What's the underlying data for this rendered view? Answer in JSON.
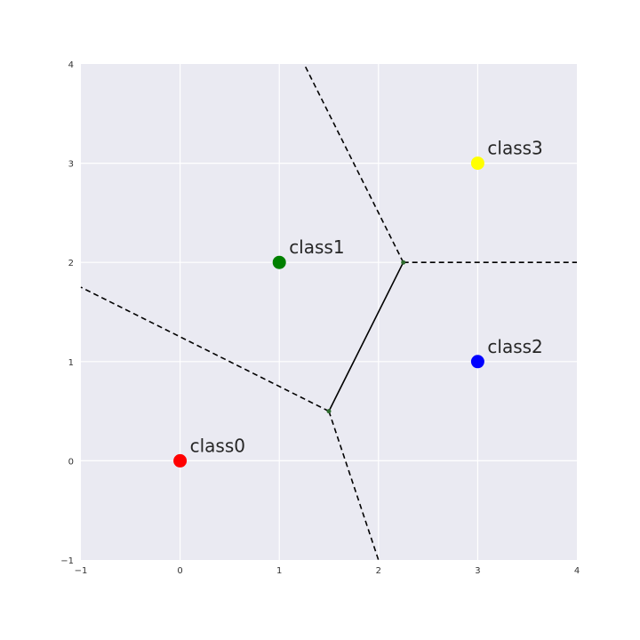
{
  "chart_data": {
    "type": "scatter",
    "title": "",
    "xlabel": "",
    "ylabel": "",
    "xlim": [
      -1,
      4
    ],
    "ylim": [
      -1,
      4
    ],
    "x_ticks": [
      "−1",
      "0",
      "1",
      "2",
      "3",
      "4"
    ],
    "y_ticks": [
      "−1",
      "0",
      "1",
      "2",
      "3",
      "4"
    ],
    "grid": true,
    "points": [
      {
        "label": "class0",
        "x": 0,
        "y": 0,
        "color": "#ff0000"
      },
      {
        "label": "class1",
        "x": 1,
        "y": 2,
        "color": "#008000"
      },
      {
        "label": "class2",
        "x": 3,
        "y": 1,
        "color": "#0000ff"
      },
      {
        "label": "class3",
        "x": 3,
        "y": 3,
        "color": "#ffff00"
      }
    ],
    "vertices": [
      {
        "x": 1.5,
        "y": 0.5
      },
      {
        "x": 2.25,
        "y": 2.0
      }
    ],
    "segments": [
      {
        "from": [
          1.5,
          0.5
        ],
        "to": [
          2.25,
          2.0
        ],
        "style": "solid"
      },
      {
        "from": [
          1.5,
          0.5
        ],
        "to": [
          -1.0,
          1.75
        ],
        "style": "dashed"
      },
      {
        "from": [
          1.5,
          0.5
        ],
        "to": [
          2.0,
          -1.0
        ],
        "style": "dashed"
      },
      {
        "from": [
          2.25,
          2.0
        ],
        "to": [
          4.0,
          2.0
        ],
        "style": "dashed"
      },
      {
        "from": [
          2.25,
          2.0
        ],
        "to": [
          1.25,
          4.0
        ],
        "style": "dashed"
      }
    ],
    "colors": {
      "plot_background": "#eaeaf2",
      "grid": "#ffffff",
      "edge": "#000000",
      "vertex": "#2e6b2e"
    }
  }
}
